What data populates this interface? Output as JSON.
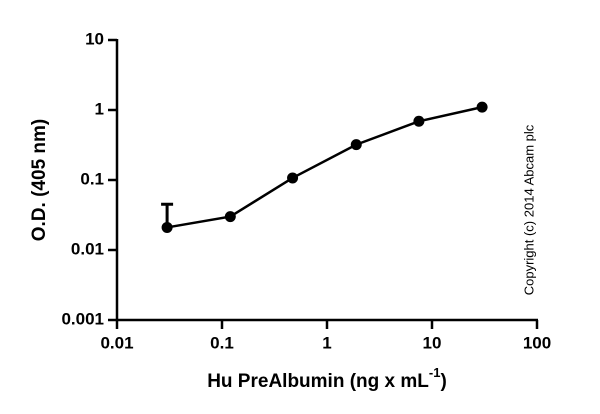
{
  "chart_data": {
    "type": "line",
    "xlabel": "Hu PreAlbumin (ng x mL",
    "xlabel_superscript": "-1",
    "xlabel_end": ")",
    "ylabel": "O.D. (405 nm)",
    "annotation": "Copyright (c) 2014 Abcam plc",
    "x": [
      0.03,
      0.12,
      0.47,
      1.9,
      7.5,
      30
    ],
    "values": [
      0.021,
      0.03,
      0.107,
      0.32,
      0.69,
      1.1
    ],
    "errors": [
      0.024,
      null,
      null,
      null,
      null,
      null
    ],
    "color": "#000000",
    "xscale": "log",
    "yscale": "log",
    "xlim": [
      0.01,
      100
    ],
    "ylim": [
      0.001,
      10
    ],
    "xticks": [
      0.01,
      0.1,
      1,
      10,
      100
    ],
    "yticks": [
      0.001,
      0.01,
      0.1,
      1,
      10
    ],
    "grid": false
  }
}
